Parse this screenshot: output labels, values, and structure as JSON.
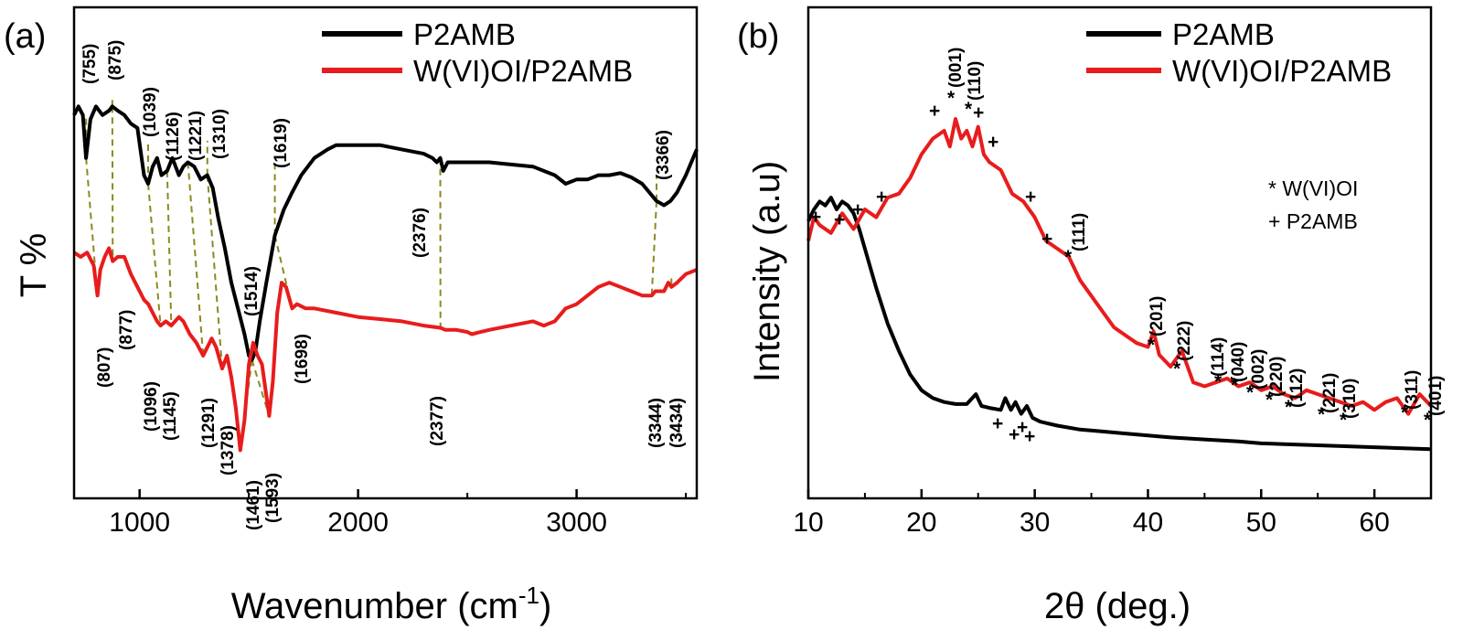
{
  "chart_data": [
    {
      "panel_label": "(a)",
      "type": "line",
      "title": "",
      "xlabel_main": "Wavenumber (cm",
      "xlabel_sup": "-1",
      "xlabel_close": ")",
      "ylabel": "T %",
      "xlim": [
        700,
        3550
      ],
      "ylim": [
        0,
        100
      ],
      "xticks": [
        1000,
        2000,
        3000
      ],
      "xtick_labels": [
        "1000",
        "2000",
        "3000"
      ],
      "y_tick_labels_shown": false,
      "grid": false,
      "legend_position": "top-center",
      "series": [
        {
          "name": "P2AMB",
          "color": "#000000",
          "x": [
            700,
            720,
            740,
            755,
            775,
            800,
            830,
            860,
            875,
            900,
            930,
            960,
            990,
            1020,
            1039,
            1060,
            1080,
            1100,
            1126,
            1150,
            1180,
            1200,
            1221,
            1250,
            1280,
            1310,
            1335,
            1360,
            1390,
            1420,
            1450,
            1480,
            1500,
            1514,
            1530,
            1550,
            1580,
            1619,
            1660,
            1698,
            1740,
            1800,
            1860,
            1900,
            1950,
            2000,
            2100,
            2200,
            2300,
            2340,
            2360,
            2376,
            2390,
            2410,
            2450,
            2500,
            2600,
            2700,
            2800,
            2900,
            2950,
            3000,
            3050,
            3100,
            3150,
            3200,
            3250,
            3300,
            3366,
            3400,
            3430,
            3460,
            3500,
            3550
          ],
          "y": [
            86,
            88,
            86,
            76,
            85,
            88,
            86,
            87,
            88,
            87,
            86,
            84,
            83,
            72,
            70,
            74,
            76,
            72,
            73,
            76,
            72,
            74,
            75,
            74,
            71,
            72,
            69,
            62,
            55,
            47,
            41,
            35,
            30,
            29,
            31,
            38,
            47,
            58,
            64,
            68,
            72,
            76,
            78,
            79,
            79,
            79,
            79,
            78,
            77,
            76,
            75,
            76,
            73,
            75,
            75,
            75,
            75,
            74.5,
            74,
            72,
            70,
            71,
            71,
            72,
            72,
            72.5,
            71.5,
            70,
            66,
            65,
            66,
            68,
            72,
            78
          ]
        },
        {
          "name": "W(VI)OI/P2AMB",
          "color": "#e81c1c",
          "x": [
            700,
            730,
            760,
            790,
            807,
            820,
            840,
            860,
            877,
            900,
            930,
            960,
            990,
            1020,
            1040,
            1060,
            1080,
            1096,
            1120,
            1145,
            1180,
            1200,
            1230,
            1260,
            1291,
            1310,
            1330,
            1350,
            1378,
            1400,
            1420,
            1440,
            1461,
            1480,
            1500,
            1520,
            1540,
            1560,
            1593,
            1610,
            1630,
            1650,
            1670,
            1698,
            1720,
            1760,
            1800,
            1900,
            2000,
            2100,
            2200,
            2300,
            2377,
            2400,
            2450,
            2500,
            2520,
            2560,
            2600,
            2700,
            2800,
            2850,
            2900,
            2950,
            3000,
            3050,
            3100,
            3150,
            3200,
            3250,
            3300,
            3344,
            3360,
            3400,
            3420,
            3434,
            3460,
            3500,
            3550
          ],
          "y": [
            54,
            53,
            54,
            51,
            44,
            50,
            53,
            55,
            52,
            53,
            53,
            49,
            46,
            43,
            42,
            40,
            38,
            37,
            38,
            37,
            39,
            38,
            35,
            33,
            30,
            32,
            34,
            32,
            27,
            30,
            25,
            18,
            8,
            15,
            28,
            33,
            30,
            28,
            16,
            24,
            40,
            47,
            46,
            41,
            42,
            41,
            41,
            40,
            39,
            38.5,
            38,
            37,
            36.5,
            36,
            36,
            35.5,
            35,
            35.5,
            36,
            37,
            38,
            37,
            38,
            41,
            42,
            44,
            46,
            47,
            46,
            45,
            44,
            44,
            45,
            45,
            47,
            46,
            47,
            49,
            50
          ]
        }
      ],
      "peak_labels": {
        "P2AMB": [
          "(755)",
          "(875)",
          "(1039)",
          "(1126)",
          "(1221)",
          "(1310)",
          "(1514)",
          "(1619)",
          "(2376)",
          "(3366)"
        ],
        "W(VI)OI/P2AMB": [
          "(807)",
          "(877)",
          "(1096)",
          "(1145)",
          "(1291)",
          "(1378)",
          "(1461)",
          "(1593)",
          "(1698)",
          "(2377)",
          "(3344)",
          "(3434)"
        ]
      }
    },
    {
      "panel_label": "(b)",
      "type": "line",
      "title": "",
      "xlabel": "2θ (deg.)",
      "ylabel": "Intensity (a.u)",
      "xlim": [
        10,
        65
      ],
      "ylim": [
        0,
        100
      ],
      "xticks": [
        10,
        20,
        30,
        40,
        50,
        60
      ],
      "xtick_labels": [
        "10",
        "20",
        "30",
        "40",
        "50",
        "60"
      ],
      "y_tick_labels_shown": false,
      "grid": false,
      "legend_position": "top-right",
      "series": [
        {
          "name": "P2AMB",
          "color": "#000000",
          "x": [
            10,
            10.5,
            11,
            11.5,
            12,
            12.5,
            13,
            13.5,
            14,
            14.5,
            15,
            15.5,
            16,
            17,
            18,
            19,
            20,
            21,
            22,
            23,
            24,
            24.8,
            25.3,
            26,
            27,
            27.4,
            27.9,
            28.3,
            28.8,
            29.3,
            29.8,
            30.5,
            32,
            34,
            36,
            38,
            40,
            42,
            45,
            48,
            50,
            55,
            60,
            65
          ],
          "y": [
            67,
            70,
            72,
            71,
            73,
            70,
            72,
            71,
            69,
            65,
            60,
            55,
            50,
            41,
            34,
            28,
            24,
            22,
            21,
            20.5,
            20.5,
            23,
            20,
            19.5,
            19,
            22,
            19,
            21,
            18,
            20,
            17,
            16,
            15,
            14,
            13.5,
            13,
            12.5,
            12,
            11.5,
            11,
            10.5,
            10,
            9.5,
            9
          ]
        },
        {
          "name": "W(VI)OI/P2AMB",
          "color": "#e81c1c",
          "x": [
            10,
            10.5,
            11,
            12,
            13,
            14,
            15,
            16,
            17,
            18,
            19,
            20,
            21,
            22,
            22.5,
            23,
            23.5,
            24,
            24.5,
            25,
            25.5,
            26,
            27,
            28,
            29,
            30,
            31,
            32,
            33,
            34,
            35,
            36,
            37,
            38,
            39,
            40,
            40.5,
            41,
            42,
            43,
            44,
            45,
            46,
            47,
            48,
            49,
            50,
            51,
            52,
            53,
            54,
            55,
            56,
            57,
            58,
            59,
            60,
            61,
            62,
            63,
            64,
            65
          ],
          "y": [
            62,
            68,
            66,
            64,
            69,
            65,
            70,
            68,
            73,
            74,
            78,
            84,
            88,
            90,
            86,
            93,
            88,
            90,
            86,
            91,
            84,
            82,
            80,
            74,
            72,
            68,
            62,
            60,
            58,
            52,
            48,
            44,
            40,
            38,
            36,
            35,
            39,
            33,
            30,
            34,
            26,
            25,
            26,
            27,
            25,
            26,
            24,
            25,
            23,
            22,
            24,
            23,
            22,
            21,
            20,
            21,
            19,
            21,
            22,
            18,
            23,
            20
          ]
        }
      ],
      "reflection_labels": [
        "(001)",
        "(110)",
        "(111)",
        "(201)",
        "(222)",
        "(114)",
        "(040)",
        "(002)",
        "(220)",
        "(112)",
        "(221)",
        "(310)",
        "(311)",
        "(401)"
      ],
      "phase_markers": [
        "*",
        "+"
      ],
      "annotations": [
        "* W(VI)OI",
        "+ P2AMB"
      ]
    }
  ]
}
